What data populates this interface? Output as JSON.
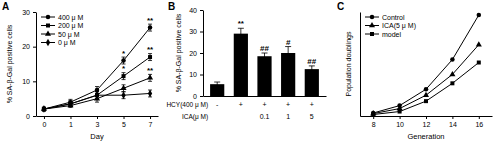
{
  "chart_data": [
    {
      "type": "line",
      "title": "A",
      "x_label": "Day",
      "y_label": "% SA-β-Gal positive cells",
      "categories": [
        "0",
        "1",
        "3",
        "5",
        "7"
      ],
      "ylim": [
        0,
        30
      ],
      "yticks": [
        0,
        10,
        20,
        30
      ],
      "legend": "upper left",
      "series": [
        {
          "name": "400 μ M",
          "color": "#000000",
          "marker": "circle",
          "values": [
            2,
            4,
            7.5,
            16,
            25.5
          ],
          "errors": [
            0.5,
            0.8,
            1,
            1,
            1
          ]
        },
        {
          "name": "200 μ M",
          "color": "#000000",
          "marker": "square",
          "values": [
            2,
            3.5,
            6,
            11.5,
            17
          ],
          "errors": [
            0.5,
            0.8,
            1,
            1,
            1
          ]
        },
        {
          "name": "50 μ M",
          "color": "#000000",
          "marker": "triangle",
          "values": [
            2,
            3,
            5,
            8,
            11
          ],
          "errors": [
            0.5,
            0.5,
            1,
            1,
            1
          ]
        },
        {
          "name": "0 μ M",
          "color": "#000000",
          "marker": "diamond",
          "values": [
            2,
            3.5,
            6,
            6,
            6.5
          ],
          "errors": [
            0.5,
            0.8,
            1,
            1,
            1
          ]
        }
      ],
      "annotations": [
        {
          "text": "*",
          "series": 0,
          "index": 3
        },
        {
          "text": "*",
          "series": 1,
          "index": 3
        },
        {
          "text": "**",
          "series": 0,
          "index": 4
        },
        {
          "text": "**",
          "series": 1,
          "index": 4
        },
        {
          "text": "**",
          "series": 2,
          "index": 4
        }
      ]
    },
    {
      "type": "bar",
      "title": "B",
      "y_label": "% SA-β-Gal positive cells",
      "categories": [
        null,
        null,
        null,
        null,
        null
      ],
      "values": [
        5.5,
        29,
        18.5,
        20,
        12.5
      ],
      "errors": [
        1,
        2.5,
        1.5,
        3,
        1.5
      ],
      "color": "#000000",
      "ylim": [
        0,
        40
      ],
      "yticks": [
        0,
        10,
        20,
        30,
        40
      ],
      "annotations": [
        {
          "text": "**",
          "index": 1
        },
        {
          "text": "##",
          "index": 2
        },
        {
          "text": "#",
          "index": 3
        },
        {
          "text": "##",
          "index": 4
        }
      ],
      "table": {
        "rows": [
          {
            "label": "HCY(400 μ M)",
            "cells": [
              "-",
              "+",
              "+",
              "+",
              "+"
            ]
          },
          {
            "label": "ICA(μ M)",
            "cells": [
              null,
              null,
              "0.1",
              "1",
              "5"
            ]
          }
        ]
      }
    },
    {
      "type": "line",
      "title": "C",
      "x_label": "Generation",
      "y_label": "Population doublings",
      "x": [
        8,
        10,
        12,
        14,
        16
      ],
      "xlim": [
        7,
        17
      ],
      "xticks": [
        8,
        10,
        12,
        14,
        16
      ],
      "ylim": [
        0,
        35
      ],
      "yticks": [],
      "tick_labels": "x",
      "legend": "upper left",
      "series": [
        {
          "name": "Control",
          "color": "#000000",
          "marker": "circle",
          "values": [
            1,
            3.5,
            9,
            19,
            34
          ]
        },
        {
          "name": "ICA(5 μ M)",
          "color": "#000000",
          "marker": "triangle",
          "values": [
            0.8,
            2.5,
            7,
            14,
            24
          ]
        },
        {
          "name": "model",
          "color": "#000000",
          "marker": "square",
          "values": [
            0.5,
            1.5,
            5,
            11,
            18
          ]
        }
      ]
    }
  ]
}
